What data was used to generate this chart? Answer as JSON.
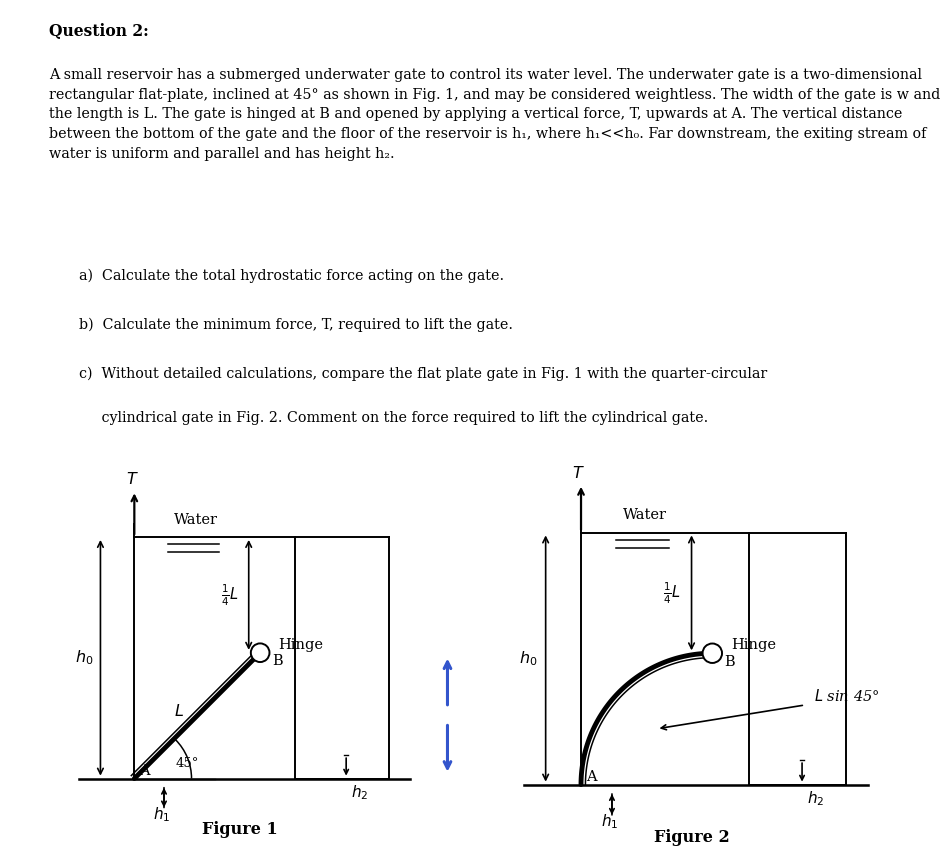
{
  "title": "Question 2:",
  "para1": "A small reservoir has a submerged underwater gate to control its water level. The underwater gate is a two-dimensional rectangular flat-plate, inclined at 45° as shown in Fig. 1, and may be considered weightless. The width of the gate is w and the length is L. The gate is hinged at B and opened by applying a vertical force, T, upwards at A. The vertical distance between the bottom of the gate and the floor of the reservoir is h₁, where h₁<<h₀. Far downstream, the exiting stream of water is uniform and parallel and has height h₂.",
  "item_a": "a)  Calculate the total hydrostatic force acting on the gate.",
  "item_b": "b)  Calculate the minimum force, T, required to lift the gate.",
  "item_c1": "c)  Without detailed calculations, compare the flat plate gate in Fig. 1 with the quarter-circular",
  "item_c2": "     cylindrical gate in Fig. 2. Comment on the force required to lift the cylindrical gate.",
  "fig1_caption": "Figure 1",
  "fig2_caption": "Figure 2",
  "bg_color": "#ffffff",
  "lc": "#000000"
}
